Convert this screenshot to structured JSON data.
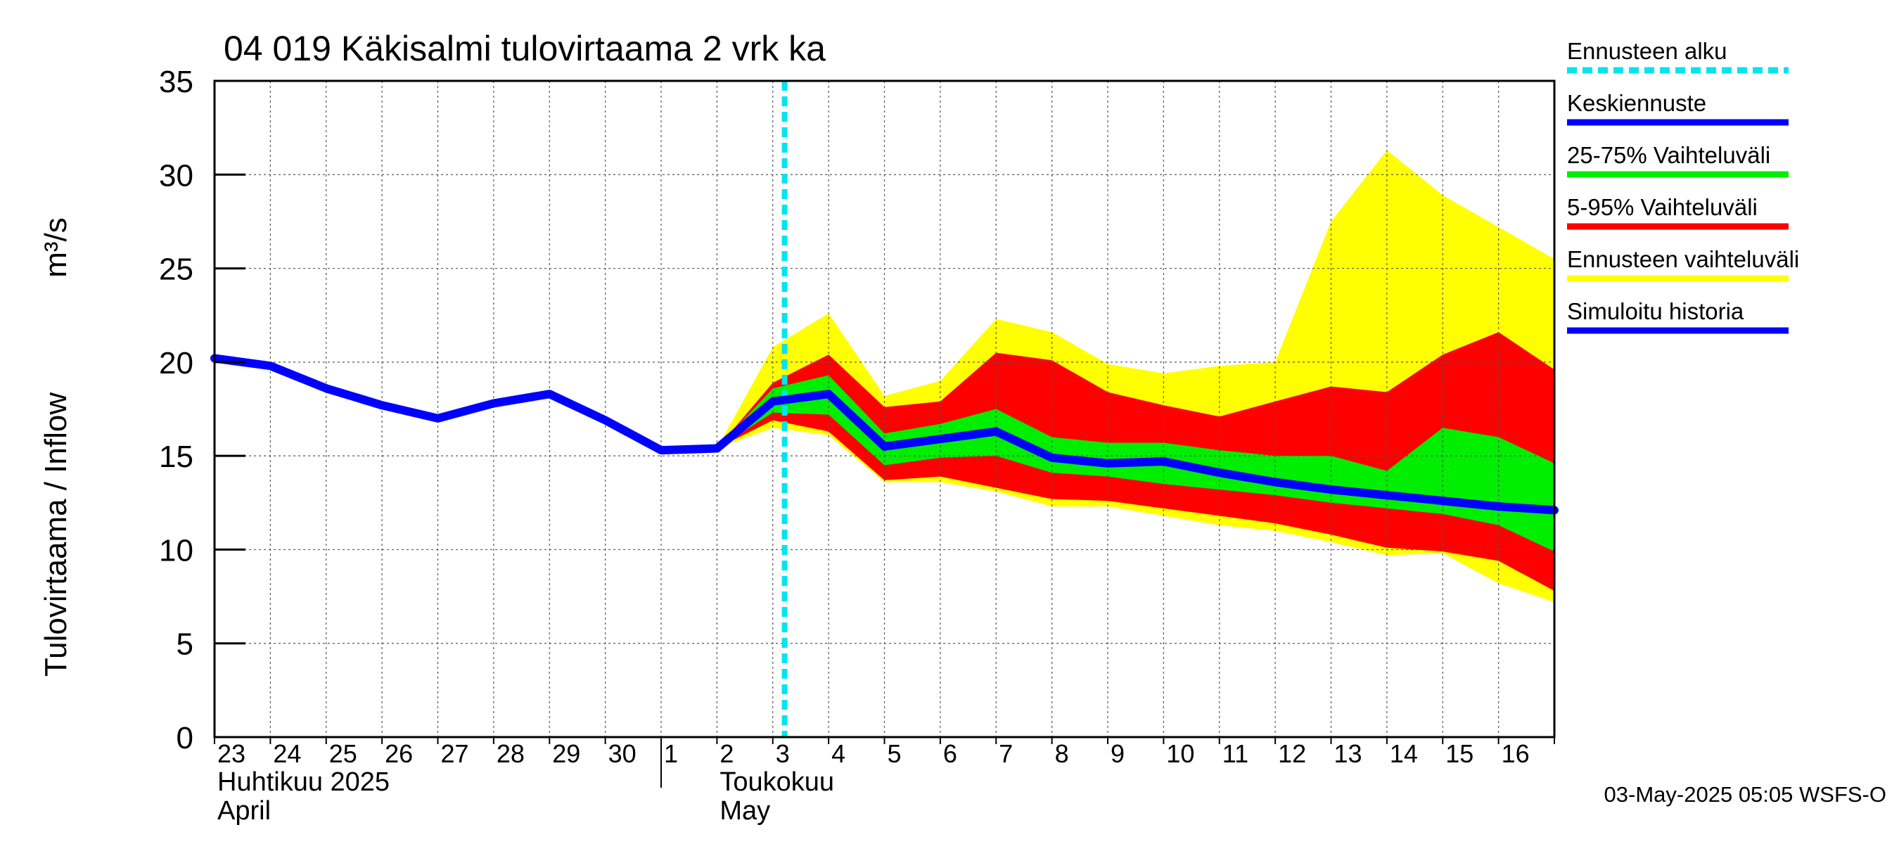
{
  "chart_data": {
    "type": "area",
    "title": "04 019 Käkisalmi tulovirtaama 2 vrk ka",
    "ylabel_main": "Tulovirtaama / Inflow",
    "ylabel_unit": "m³/s",
    "ylim": [
      0,
      35
    ],
    "yticks": [
      "0",
      "5",
      "10",
      "15",
      "20",
      "25",
      "30",
      "35"
    ],
    "x_dates": [
      "2025-04-23",
      "2025-05-17"
    ],
    "day_labels": [
      "23",
      "24",
      "25",
      "26",
      "27",
      "28",
      "29",
      "30",
      "1",
      "2",
      "3",
      "4",
      "5",
      "6",
      "7",
      "8",
      "9",
      "10",
      "11",
      "12",
      "13",
      "14",
      "15",
      "16"
    ],
    "months": [
      {
        "fi": "Huhtikuu  2025",
        "en": "April"
      },
      {
        "fi": "Toukokuu",
        "en": "May"
      }
    ],
    "forecast_start": "2025-05-03 05:05",
    "series": {
      "history": {
        "name": "Simuloitu historia",
        "color": "#0000ff",
        "points": [
          [
            "2025-04-23",
            20.2
          ],
          [
            "2025-04-24",
            19.8
          ],
          [
            "2025-04-25",
            18.6
          ],
          [
            "2025-04-26",
            17.7
          ],
          [
            "2025-04-27",
            17.0
          ],
          [
            "2025-04-28",
            17.8
          ],
          [
            "2025-04-29",
            18.3
          ],
          [
            "2025-04-30",
            16.9
          ],
          [
            "2025-05-01",
            15.3
          ],
          [
            "2025-05-02",
            15.4
          ]
        ]
      },
      "forecast_mean": {
        "name": "Keskiennuste",
        "color": "#0000ff",
        "points": [
          [
            "2025-05-02",
            15.4
          ],
          [
            "2025-05-03",
            17.9
          ],
          [
            "2025-05-04",
            18.3
          ],
          [
            "2025-05-05",
            15.5
          ],
          [
            "2025-05-06",
            15.9
          ],
          [
            "2025-05-07",
            16.3
          ],
          [
            "2025-05-08",
            14.9
          ],
          [
            "2025-05-09",
            14.6
          ],
          [
            "2025-05-10",
            14.7
          ],
          [
            "2025-05-11",
            14.1
          ],
          [
            "2025-05-12",
            13.6
          ],
          [
            "2025-05-13",
            13.2
          ],
          [
            "2025-05-14",
            12.9
          ],
          [
            "2025-05-15",
            12.6
          ],
          [
            "2025-05-16",
            12.3
          ],
          [
            "2025-05-17",
            12.1
          ]
        ]
      },
      "band_25_75": {
        "name": "25-75% Vaihteluväli",
        "color": "#00ee00",
        "x": [
          "2025-05-02",
          "2025-05-03",
          "2025-05-04",
          "2025-05-05",
          "2025-05-06",
          "2025-05-07",
          "2025-05-08",
          "2025-05-09",
          "2025-05-10",
          "2025-05-11",
          "2025-05-12",
          "2025-05-13",
          "2025-05-14",
          "2025-05-15",
          "2025-05-16",
          "2025-05-17"
        ],
        "upper": [
          15.4,
          18.6,
          19.3,
          16.2,
          16.7,
          17.5,
          16.0,
          15.7,
          15.7,
          15.3,
          15.0,
          15.0,
          14.2,
          16.5,
          16.0,
          14.6
        ],
        "lower": [
          15.4,
          17.3,
          17.2,
          14.5,
          14.9,
          15.0,
          14.1,
          13.9,
          13.5,
          13.2,
          12.9,
          12.5,
          12.2,
          11.9,
          11.3,
          9.9
        ]
      },
      "band_5_95": {
        "name": "5-95% Vaihteluväli",
        "color": "#ff0000",
        "x": [
          "2025-05-02",
          "2025-05-03",
          "2025-05-04",
          "2025-05-05",
          "2025-05-06",
          "2025-05-07",
          "2025-05-08",
          "2025-05-09",
          "2025-05-10",
          "2025-05-11",
          "2025-05-12",
          "2025-05-13",
          "2025-05-14",
          "2025-05-15",
          "2025-05-16",
          "2025-05-17"
        ],
        "upper": [
          15.4,
          18.9,
          20.4,
          17.6,
          17.9,
          20.5,
          20.1,
          18.4,
          17.7,
          17.1,
          17.9,
          18.7,
          18.4,
          20.4,
          21.6,
          19.6
        ],
        "lower": [
          15.4,
          16.9,
          16.3,
          13.7,
          13.9,
          13.3,
          12.7,
          12.6,
          12.2,
          11.8,
          11.4,
          10.8,
          10.1,
          9.9,
          9.4,
          7.8
        ]
      },
      "band_full": {
        "name": "Ennusteen vaihteluväli",
        "color": "#ffff00",
        "x": [
          "2025-05-02",
          "2025-05-03",
          "2025-05-04",
          "2025-05-05",
          "2025-05-06",
          "2025-05-07",
          "2025-05-08",
          "2025-05-09",
          "2025-05-10",
          "2025-05-11",
          "2025-05-12",
          "2025-05-13",
          "2025-05-14",
          "2025-05-15",
          "2025-05-16",
          "2025-05-17"
        ],
        "upper": [
          15.4,
          20.8,
          22.6,
          18.2,
          19.0,
          22.3,
          21.6,
          19.9,
          19.4,
          19.8,
          20.0,
          27.5,
          31.3,
          28.9,
          27.2,
          25.5
        ],
        "lower": [
          15.4,
          16.5,
          16.1,
          13.6,
          13.6,
          13.1,
          12.3,
          12.3,
          11.8,
          11.3,
          11.0,
          10.4,
          9.7,
          9.8,
          8.2,
          7.2
        ]
      }
    },
    "legend": [
      {
        "label": "Ennusteen alku",
        "color": "#00e5ee",
        "style": "dashed"
      },
      {
        "label": "Keskiennuste",
        "color": "#0000ff",
        "style": "solid"
      },
      {
        "label": "25-75% Vaihteluväli",
        "color": "#00ee00",
        "style": "solid"
      },
      {
        "label": "5-95% Vaihteluväli",
        "color": "#ff0000",
        "style": "solid"
      },
      {
        "label": "Ennusteen vaihteluväli",
        "color": "#ffff00",
        "style": "solid"
      },
      {
        "label": "Simuloitu historia",
        "color": "#0000ff",
        "style": "solid"
      }
    ],
    "footer": "03-May-2025 05:05 WSFS-O",
    "grid": true
  }
}
